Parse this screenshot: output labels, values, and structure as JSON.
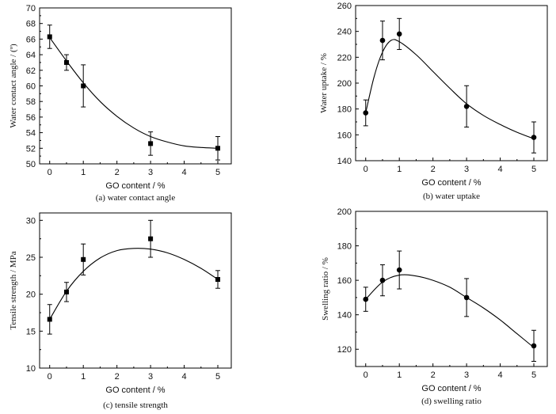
{
  "chart_data": [
    {
      "type": "scatter",
      "marker": "square",
      "xlabel": "GO content / %",
      "ylabel": "Water contact angle / (º)",
      "caption": "(a) water contact angle",
      "xlim": [
        -0.3,
        5.4
      ],
      "ylim": [
        50,
        70
      ],
      "xticks": [
        "0",
        "1",
        "2",
        "3",
        "4",
        "5"
      ],
      "yticks": [
        "50",
        "52",
        "54",
        "56",
        "58",
        "60",
        "62",
        "64",
        "66",
        "68",
        "70"
      ],
      "points": [
        {
          "x": 0,
          "y": 66.3,
          "err": 1.5
        },
        {
          "x": 0.5,
          "y": 63.0,
          "err": 1.0
        },
        {
          "x": 1,
          "y": 60.0,
          "err": 2.7
        },
        {
          "x": 3,
          "y": 52.6,
          "err": 1.5
        },
        {
          "x": 5,
          "y": 52.0,
          "err": 1.5
        }
      ],
      "fit_curve": [
        [
          0,
          66.2
        ],
        [
          0.5,
          63.2
        ],
        [
          1,
          60.4
        ],
        [
          1.5,
          58.0
        ],
        [
          2,
          56.1
        ],
        [
          2.5,
          54.6
        ],
        [
          3,
          53.5
        ],
        [
          3.5,
          52.8
        ],
        [
          4,
          52.3
        ],
        [
          4.5,
          52.1
        ],
        [
          5,
          52.0
        ]
      ]
    },
    {
      "type": "scatter",
      "marker": "circle",
      "xlabel": "GO content / %",
      "ylabel": "Water uptake / %",
      "caption": "(b) water uptake",
      "xlim": [
        -0.3,
        5.4
      ],
      "ylim": [
        140,
        260
      ],
      "xticks": [
        "0",
        "1",
        "2",
        "3",
        "4",
        "5"
      ],
      "yticks": [
        "140",
        "160",
        "180",
        "200",
        "220",
        "240",
        "260"
      ],
      "points": [
        {
          "x": 0,
          "y": 177,
          "err": 10
        },
        {
          "x": 0.5,
          "y": 233,
          "err": 15
        },
        {
          "x": 1,
          "y": 238,
          "err": 12
        },
        {
          "x": 3,
          "y": 182,
          "err": 16
        },
        {
          "x": 5,
          "y": 158,
          "err": 12
        }
      ],
      "fit_curve": [
        [
          0,
          177
        ],
        [
          0.25,
          205
        ],
        [
          0.5,
          224
        ],
        [
          0.75,
          233
        ],
        [
          1,
          232
        ],
        [
          1.5,
          222
        ],
        [
          2,
          209
        ],
        [
          2.5,
          196
        ],
        [
          3,
          184
        ],
        [
          3.5,
          175
        ],
        [
          4,
          168
        ],
        [
          4.5,
          162
        ],
        [
          5,
          157
        ]
      ]
    },
    {
      "type": "scatter",
      "marker": "square",
      "xlabel": "GO content / %",
      "ylabel": "Tensile strength / MPa",
      "caption": "(c) tensile strength",
      "xlim": [
        -0.3,
        5.4
      ],
      "ylim": [
        10,
        31
      ],
      "xticks": [
        "0",
        "1",
        "2",
        "3",
        "4",
        "5"
      ],
      "yticks": [
        "10",
        "15",
        "20",
        "25",
        "30"
      ],
      "points": [
        {
          "x": 0,
          "y": 16.6,
          "err": 2.0
        },
        {
          "x": 0.5,
          "y": 20.3,
          "err": 1.3
        },
        {
          "x": 1,
          "y": 24.7,
          "err": 2.1
        },
        {
          "x": 3,
          "y": 27.5,
          "err": 2.5
        },
        {
          "x": 5,
          "y": 22.0,
          "err": 1.2
        }
      ],
      "fit_curve": [
        [
          0,
          16.6
        ],
        [
          0.5,
          20.4
        ],
        [
          1,
          23.1
        ],
        [
          1.5,
          24.9
        ],
        [
          2,
          25.9
        ],
        [
          2.5,
          26.2
        ],
        [
          3,
          26.1
        ],
        [
          3.5,
          25.6
        ],
        [
          4,
          24.7
        ],
        [
          4.5,
          23.5
        ],
        [
          5,
          22.0
        ]
      ]
    },
    {
      "type": "scatter",
      "marker": "circle",
      "xlabel": "GO content / %",
      "ylabel": "Swelling ratio / %",
      "caption": "(d) swelling ratio",
      "xlim": [
        -0.3,
        5.4
      ],
      "ylim": [
        110,
        200
      ],
      "xticks": [
        "0",
        "1",
        "2",
        "3",
        "4",
        "5"
      ],
      "yticks": [
        "120",
        "140",
        "160",
        "180",
        "200"
      ],
      "points": [
        {
          "x": 0,
          "y": 149,
          "err": 7
        },
        {
          "x": 0.5,
          "y": 160,
          "err": 9
        },
        {
          "x": 1,
          "y": 166,
          "err": 11
        },
        {
          "x": 3,
          "y": 150,
          "err": 11
        },
        {
          "x": 5,
          "y": 122,
          "err": 9
        }
      ],
      "fit_curve": [
        [
          0,
          149
        ],
        [
          0.5,
          159
        ],
        [
          1,
          163
        ],
        [
          1.5,
          162.5
        ],
        [
          2,
          160
        ],
        [
          2.5,
          156
        ],
        [
          3,
          150
        ],
        [
          3.5,
          144
        ],
        [
          4,
          137
        ],
        [
          4.5,
          129
        ],
        [
          5,
          121
        ]
      ]
    }
  ]
}
